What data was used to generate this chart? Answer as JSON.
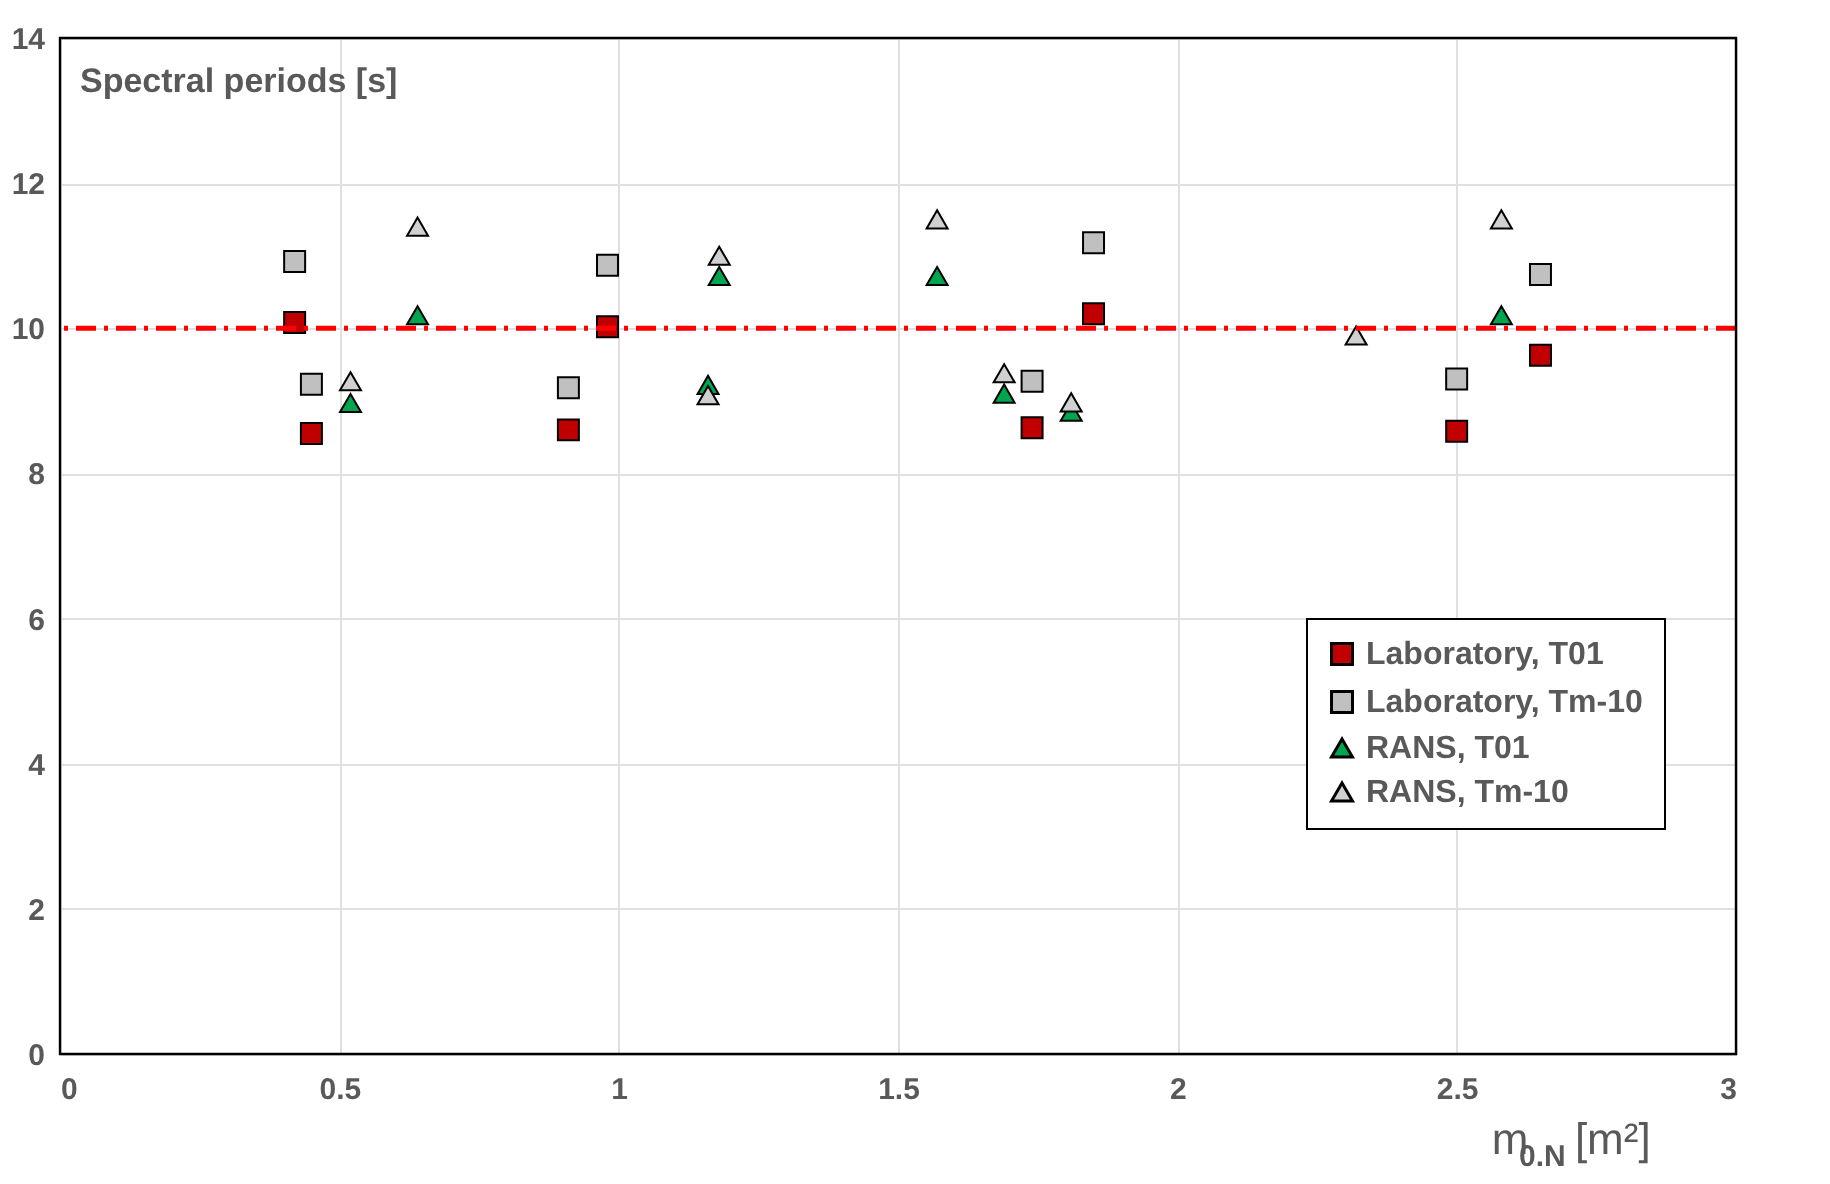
{
  "chart_data": {
    "type": "scatter",
    "xlabel": "m$_{0.N}$[m²]",
    "ylabel": "Spectral periods [s]",
    "xlim": [
      0,
      3
    ],
    "xticks": [
      0,
      0.5,
      1,
      1.5,
      2,
      2.5,
      3
    ],
    "ylim": [
      0,
      14
    ],
    "yticks": [
      0,
      2,
      4,
      6,
      8,
      10,
      12,
      14
    ],
    "grid": true,
    "legend": "right",
    "series": [
      {
        "name": "Laboratory, T01",
        "color": "#c00000",
        "marker": "square",
        "x": [
          0.42,
          0.45,
          0.91,
          0.98,
          1.74,
          1.85,
          2.5,
          2.65
        ],
        "values": [
          10.08,
          8.55,
          8.6,
          10.02,
          8.63,
          10.2,
          8.58,
          9.63
        ]
      },
      {
        "name": "Laboratory, Tm-10",
        "color": "#c0c0c0",
        "marker": "square",
        "x": [
          0.42,
          0.45,
          0.91,
          0.98,
          1.74,
          1.85,
          2.5,
          2.65
        ],
        "values": [
          10.92,
          9.23,
          9.18,
          10.87,
          9.27,
          11.18,
          9.3,
          10.74
        ]
      },
      {
        "name": "RANS, T01",
        "color": "#00a550",
        "marker": "triangle",
        "x": [
          0.52,
          0.64,
          1.16,
          1.18,
          1.57,
          1.69,
          1.81,
          2.32,
          2.58
        ],
        "values": [
          8.97,
          10.18,
          9.22,
          10.72,
          10.72,
          9.1,
          8.85,
          null,
          10.18
        ]
      },
      {
        "name": "RANS, Tm-10",
        "color": "#d0d0d0",
        "marker": "triangle",
        "x": [
          0.52,
          0.64,
          1.16,
          1.18,
          1.57,
          1.69,
          1.81,
          2.32,
          2.58
        ],
        "values": [
          9.27,
          11.4,
          9.08,
          11.0,
          11.5,
          9.38,
          8.98,
          9.9,
          11.5
        ]
      }
    ],
    "ref_lines": [
      {
        "axis": "y",
        "value": 10,
        "color": "#ff0000",
        "line_style": "dashdot"
      }
    ]
  }
}
